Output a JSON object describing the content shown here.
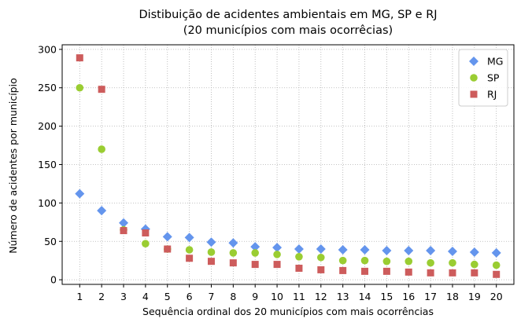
{
  "chart_data": {
    "type": "scatter",
    "title_lines": [
      "Distibuição de acidentes ambientais em MG, SP e RJ",
      "(20 municípios com mais ocorrêcias)"
    ],
    "xlabel": "Sequência ordinal dos 20 municípios com mais ocorrências",
    "ylabel": "Número de acidentes por município",
    "x": [
      1,
      2,
      3,
      4,
      5,
      6,
      7,
      8,
      9,
      10,
      11,
      12,
      13,
      14,
      15,
      16,
      17,
      18,
      19,
      20
    ],
    "x_ticks": [
      "1",
      "2",
      "3",
      "4",
      "5",
      "6",
      "7",
      "8",
      "9",
      "10",
      "11",
      "12",
      "13",
      "14",
      "15",
      "16",
      "17",
      "18",
      "19",
      "20"
    ],
    "y_ticks": [
      0,
      50,
      100,
      150,
      200,
      250,
      300
    ],
    "xlim": [
      0.2,
      20.8
    ],
    "ylim": [
      -6,
      306
    ],
    "grid": true,
    "legend_position": "top-right",
    "series": [
      {
        "name": "MG",
        "marker": "diamond",
        "color": "#6495ED",
        "values": [
          112,
          90,
          74,
          66,
          56,
          55,
          49,
          48,
          43,
          42,
          40,
          40,
          39,
          39,
          38,
          38,
          38,
          37,
          36,
          35
        ]
      },
      {
        "name": "SP",
        "marker": "circle",
        "color": "#9ACD32",
        "values": [
          250,
          170,
          65,
          47,
          40,
          39,
          36,
          35,
          35,
          33,
          30,
          29,
          25,
          25,
          24,
          24,
          22,
          22,
          20,
          19
        ]
      },
      {
        "name": "RJ",
        "marker": "square",
        "color": "#CD5C5C",
        "values": [
          289,
          248,
          64,
          61,
          40,
          28,
          24,
          22,
          20,
          20,
          15,
          13,
          12,
          11,
          11,
          10,
          9,
          9,
          9,
          7
        ]
      }
    ]
  }
}
